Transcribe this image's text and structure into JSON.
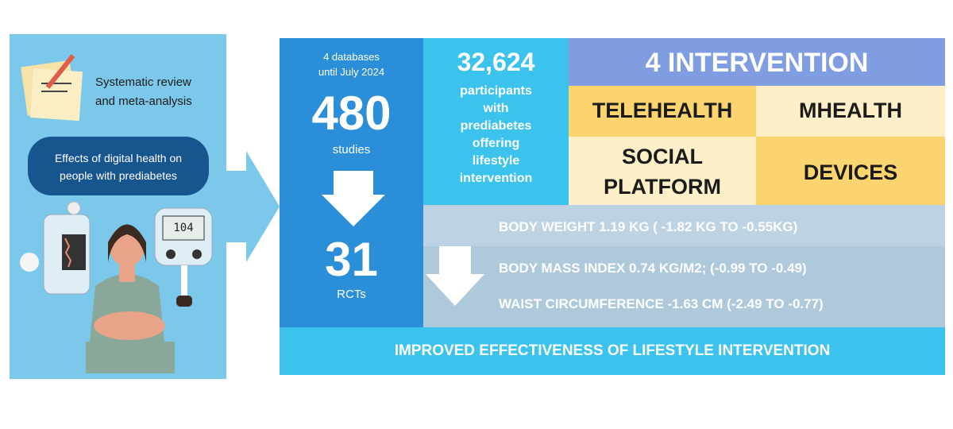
{
  "left": {
    "title_lines": [
      "Systematic review",
      "and meta-analysis"
    ],
    "subtitle_lines": [
      "Effects of digital health on",
      "people with prediabetes"
    ],
    "meter_reading": "104"
  },
  "studies": {
    "note_lines": [
      "4 databases",
      "until July 2024"
    ],
    "count": "480",
    "count_label": "studies",
    "rcts": "31",
    "rcts_label": "RCTs"
  },
  "participants": {
    "count": "32,624",
    "label_lines": [
      "participants",
      "with",
      "prediabetes",
      "offering",
      "lifestyle",
      "intervention"
    ]
  },
  "interventions": {
    "title": "4 INTERVENTION",
    "items": [
      [
        "TELEHEALTH"
      ],
      [
        "MHEALTH"
      ],
      [
        "SOCIAL",
        "PLATFORM"
      ],
      [
        "DEVICES"
      ]
    ]
  },
  "outcomes": [
    "BODY WEIGHT  1.19 KG ( -1.82 KG TO -0.55KG)",
    "BODY MASS INDEX  0.74 KG/M2; (-0.99 TO -0.49)",
    "WAIST CIRCUMFERENCE  -1.63 CM (-2.49 TO -0.77)"
  ],
  "conclusion": "IMPROVED EFFECTIVENESS OF LIFESTYLE INTERVENTION"
}
